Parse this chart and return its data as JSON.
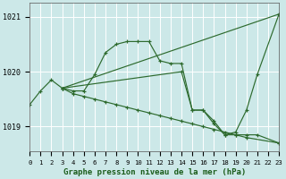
{
  "title": "Graphe pression niveau de la mer (hPa)",
  "bg_color": "#cce8e8",
  "grid_color": "#b0d8d8",
  "line_color": "#2d6a2d",
  "xlim": [
    0,
    23
  ],
  "ylim": [
    1018.55,
    1021.25
  ],
  "yticks": [
    1019,
    1020,
    1021
  ],
  "xtick_labels": [
    "0",
    "1",
    "2",
    "3",
    "4",
    "5",
    "6",
    "7",
    "8",
    "9",
    "10",
    "11",
    "12",
    "13",
    "14",
    "15",
    "16",
    "17",
    "18",
    "19",
    "20",
    "21",
    "22",
    "23"
  ],
  "series": [
    {
      "x": [
        0,
        1,
        2,
        3,
        4,
        5,
        6,
        7,
        8,
        9,
        10,
        11,
        12,
        13,
        14,
        15,
        16,
        17,
        18,
        19,
        20,
        21,
        23
      ],
      "y": [
        1019.4,
        1019.65,
        1019.85,
        1019.7,
        1019.65,
        1019.65,
        1019.95,
        1020.35,
        1020.5,
        1020.55,
        1020.55,
        1020.55,
        1020.2,
        1020.15,
        1020.15,
        1019.3,
        1019.3,
        1019.1,
        1018.85,
        1018.9,
        1019.3,
        1019.95,
        1021.05
      ]
    },
    {
      "x": [
        3,
        23
      ],
      "y": [
        1019.7,
        1021.05
      ]
    },
    {
      "x": [
        3,
        14,
        15,
        16,
        17,
        18,
        19,
        20,
        21,
        23
      ],
      "y": [
        1019.7,
        1020.0,
        1019.3,
        1019.3,
        1019.05,
        1018.85,
        1018.85,
        1018.85,
        1018.85,
        1018.7
      ]
    },
    {
      "x": [
        3,
        4,
        5,
        6,
        7,
        8,
        9,
        10,
        11,
        12,
        13,
        14,
        15,
        16,
        17,
        18,
        19,
        20,
        23
      ],
      "y": [
        1019.7,
        1019.6,
        1019.55,
        1019.5,
        1019.45,
        1019.4,
        1019.35,
        1019.3,
        1019.25,
        1019.2,
        1019.15,
        1019.1,
        1019.05,
        1019.0,
        1018.95,
        1018.9,
        1018.85,
        1018.8,
        1018.7
      ]
    }
  ]
}
